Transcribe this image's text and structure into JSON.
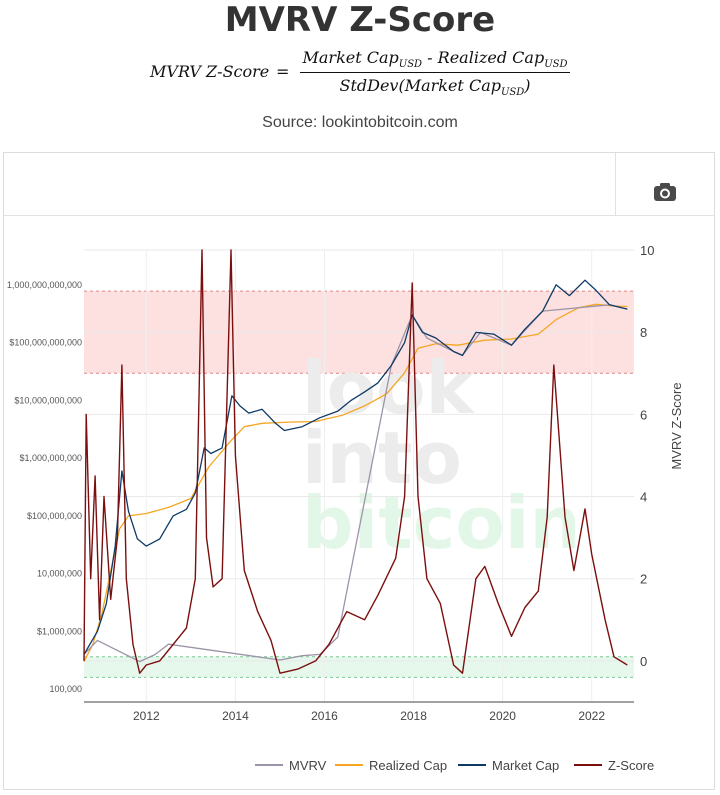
{
  "header": {
    "title": "MVRV Z-Score",
    "formula": {
      "lhs": "MVRV Z-Score",
      "eq": "=",
      "num_a": "Market Cap",
      "num_a_sub": "USD",
      "num_sep": " - ",
      "num_b": "Realized Cap",
      "num_b_sub": "USD",
      "den_a": "StdDev(Market Cap",
      "den_a_sub": "USD",
      "den_close": ")"
    },
    "source": "Source: lookintobitcoin.com"
  },
  "toolbar": {
    "camera_icon": "camera-icon"
  },
  "watermark": {
    "line1": "look",
    "line2": "into",
    "line3": "bitcoin"
  },
  "colors": {
    "mvrv": "#9d94a8",
    "realized_cap": "#f5a623",
    "market_cap": "#0e3a66",
    "zscore": "#7b0f0f",
    "red_band": "#fde1e1",
    "green_band": "#e6f8ec"
  },
  "chart_data": {
    "type": "line",
    "x_ticks": [
      "2012",
      "2014",
      "2016",
      "2018",
      "2020",
      "2022"
    ],
    "y_left": {
      "scale": "log",
      "ticks": [
        "100,000",
        "$1,000,000",
        "10,000,000",
        "$100,000,000",
        "$1,000,000,000",
        "$10,000,000,000",
        "$100,000,000,000",
        "1,000,000,000,000"
      ],
      "range": [
        60000,
        4000000000000
      ]
    },
    "y_right": {
      "label": "MVRV Z-Score",
      "ticks": [
        "0",
        "2",
        "4",
        "6",
        "8",
        "10"
      ],
      "range": [
        -1,
        10
      ]
    },
    "bands": {
      "red": {
        "from": 7,
        "to": 9
      },
      "green": {
        "from": -0.4,
        "to": 0.1
      }
    },
    "legend": [
      "MVRV",
      "Realized Cap",
      "Market Cap",
      "Z-Score"
    ],
    "series": [
      {
        "name": "Market Cap",
        "axis": "left",
        "points": [
          [
            2010.6,
            400000
          ],
          [
            2010.9,
            1000000
          ],
          [
            2011.1,
            3000000
          ],
          [
            2011.3,
            30000000
          ],
          [
            2011.45,
            600000000
          ],
          [
            2011.6,
            120000000
          ],
          [
            2011.8,
            40000000
          ],
          [
            2012.0,
            30000000
          ],
          [
            2012.3,
            40000000
          ],
          [
            2012.6,
            100000000
          ],
          [
            2012.9,
            130000000
          ],
          [
            2013.1,
            250000000
          ],
          [
            2013.3,
            1500000000
          ],
          [
            2013.45,
            1200000000
          ],
          [
            2013.7,
            1500000000
          ],
          [
            2013.92,
            12000000000
          ],
          [
            2014.1,
            8000000000
          ],
          [
            2014.3,
            6000000000
          ],
          [
            2014.6,
            7000000000
          ],
          [
            2014.9,
            4000000000
          ],
          [
            2015.1,
            3000000000
          ],
          [
            2015.5,
            3500000000
          ],
          [
            2015.9,
            5000000000
          ],
          [
            2016.3,
            6500000000
          ],
          [
            2016.6,
            10000000000
          ],
          [
            2016.9,
            14000000000
          ],
          [
            2017.2,
            20000000000
          ],
          [
            2017.5,
            40000000000
          ],
          [
            2017.8,
            100000000000
          ],
          [
            2017.97,
            300000000000
          ],
          [
            2018.2,
            150000000000
          ],
          [
            2018.5,
            120000000000
          ],
          [
            2018.9,
            70000000000
          ],
          [
            2019.1,
            60000000000
          ],
          [
            2019.4,
            150000000000
          ],
          [
            2019.8,
            140000000000
          ],
          [
            2020.2,
            90000000000
          ],
          [
            2020.5,
            170000000000
          ],
          [
            2020.9,
            350000000000
          ],
          [
            2021.2,
            1000000000000
          ],
          [
            2021.5,
            650000000000
          ],
          [
            2021.85,
            1200000000000
          ],
          [
            2022.1,
            800000000000
          ],
          [
            2022.4,
            450000000000
          ],
          [
            2022.8,
            380000000000
          ]
        ]
      },
      {
        "name": "Realized Cap",
        "axis": "left",
        "points": [
          [
            2010.6,
            300000
          ],
          [
            2010.8,
            600000
          ],
          [
            2011.0,
            2000000
          ],
          [
            2011.4,
            60000000
          ],
          [
            2011.6,
            100000000
          ],
          [
            2012.0,
            110000000
          ],
          [
            2012.5,
            140000000
          ],
          [
            2013.0,
            200000000
          ],
          [
            2013.4,
            700000000
          ],
          [
            2013.9,
            2000000000
          ],
          [
            2014.2,
            3500000000
          ],
          [
            2014.6,
            4000000000
          ],
          [
            2015.2,
            4200000000
          ],
          [
            2015.8,
            4300000000
          ],
          [
            2016.4,
            5500000000
          ],
          [
            2016.9,
            8000000000
          ],
          [
            2017.4,
            13000000000
          ],
          [
            2017.8,
            30000000000
          ],
          [
            2018.1,
            80000000000
          ],
          [
            2018.5,
            95000000000
          ],
          [
            2019.0,
            90000000000
          ],
          [
            2019.6,
            110000000000
          ],
          [
            2020.2,
            115000000000
          ],
          [
            2020.8,
            140000000000
          ],
          [
            2021.2,
            250000000000
          ],
          [
            2021.7,
            400000000000
          ],
          [
            2022.1,
            460000000000
          ],
          [
            2022.5,
            430000000000
          ],
          [
            2022.8,
            420000000000
          ]
        ]
      },
      {
        "name": "Z-Score",
        "axis": "right",
        "points": [
          [
            2010.6,
            0
          ],
          [
            2010.65,
            6
          ],
          [
            2010.75,
            2
          ],
          [
            2010.85,
            4.5
          ],
          [
            2010.95,
            1
          ],
          [
            2011.05,
            4
          ],
          [
            2011.2,
            1.5
          ],
          [
            2011.35,
            3
          ],
          [
            2011.45,
            7.2
          ],
          [
            2011.55,
            2
          ],
          [
            2011.7,
            0.4
          ],
          [
            2011.85,
            -0.3
          ],
          [
            2012.0,
            -0.1
          ],
          [
            2012.3,
            0
          ],
          [
            2012.6,
            0.4
          ],
          [
            2012.9,
            0.8
          ],
          [
            2013.1,
            2
          ],
          [
            2013.25,
            10
          ],
          [
            2013.35,
            3
          ],
          [
            2013.5,
            1.8
          ],
          [
            2013.7,
            2
          ],
          [
            2013.9,
            10
          ],
          [
            2014.0,
            5
          ],
          [
            2014.2,
            2.2
          ],
          [
            2014.5,
            1.2
          ],
          [
            2014.8,
            0.5
          ],
          [
            2015.0,
            -0.3
          ],
          [
            2015.4,
            -0.2
          ],
          [
            2015.8,
            0
          ],
          [
            2016.1,
            0.4
          ],
          [
            2016.5,
            1.2
          ],
          [
            2016.9,
            1
          ],
          [
            2017.2,
            1.6
          ],
          [
            2017.6,
            2.5
          ],
          [
            2017.8,
            4
          ],
          [
            2017.97,
            9.2
          ],
          [
            2018.1,
            4
          ],
          [
            2018.3,
            2
          ],
          [
            2018.6,
            1.4
          ],
          [
            2018.9,
            -0.1
          ],
          [
            2019.1,
            -0.3
          ],
          [
            2019.4,
            2
          ],
          [
            2019.6,
            2.3
          ],
          [
            2019.9,
            1.4
          ],
          [
            2020.2,
            0.6
          ],
          [
            2020.5,
            1.3
          ],
          [
            2020.8,
            1.7
          ],
          [
            2021.0,
            3.5
          ],
          [
            2021.15,
            7.2
          ],
          [
            2021.4,
            3.5
          ],
          [
            2021.6,
            2.2
          ],
          [
            2021.85,
            3.7
          ],
          [
            2022.0,
            2.6
          ],
          [
            2022.3,
            1
          ],
          [
            2022.5,
            0.1
          ],
          [
            2022.8,
            -0.1
          ]
        ]
      },
      {
        "name": "MVRV",
        "axis": "left",
        "points": [
          [
            2010.6,
            400000
          ],
          [
            2010.9,
            700000
          ],
          [
            2011.85,
            300000
          ],
          [
            2012.2,
            400000
          ],
          [
            2012.5,
            600000
          ],
          [
            2015.0,
            320000
          ],
          [
            2015.5,
            380000
          ],
          [
            2015.9,
            400000
          ],
          [
            2016.3,
            800000
          ],
          [
            2017.5,
            40000000000
          ],
          [
            2017.97,
            300000000000
          ],
          [
            2018.3,
            120000000000
          ],
          [
            2018.9,
            70000000000
          ],
          [
            2019.1,
            60000000000
          ],
          [
            2019.5,
            150000000000
          ],
          [
            2020.2,
            90000000000
          ],
          [
            2020.9,
            350000000000
          ],
          [
            2022.4,
            450000000000
          ],
          [
            2022.8,
            380000000000
          ]
        ]
      }
    ]
  }
}
